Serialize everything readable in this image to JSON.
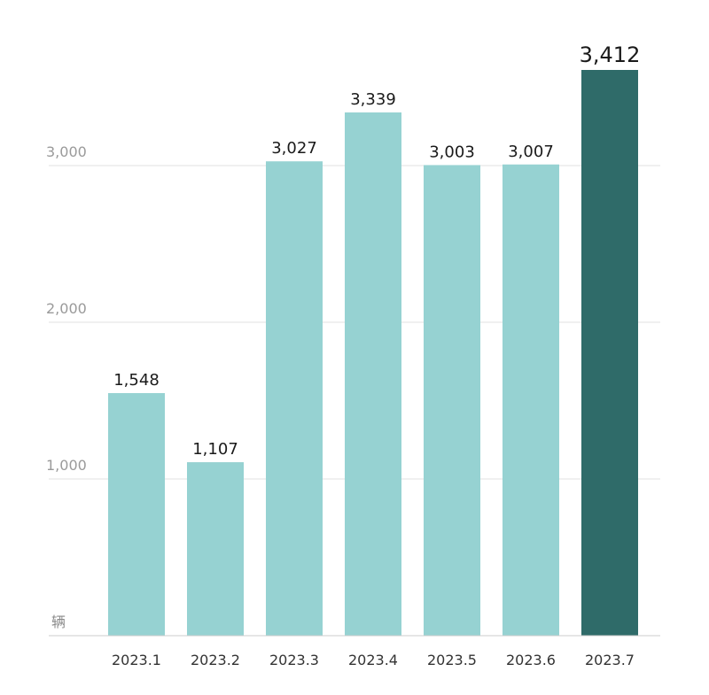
{
  "chart_data": {
    "type": "bar",
    "categories": [
      "2023.1",
      "2023.2",
      "2023.3",
      "2023.4",
      "2023.5",
      "2023.6",
      "2023.7"
    ],
    "values": [
      1548,
      1107,
      3027,
      3339,
      3003,
      3007,
      3412
    ],
    "value_labels": [
      "1,548",
      "1,107",
      "3,027",
      "3,339",
      "3,003",
      "3,007",
      "3,412"
    ],
    "ylabel": "辆",
    "yticks": [
      1000,
      2000,
      3000
    ],
    "ytick_labels": [
      "1,000",
      "2,000",
      "3,000"
    ],
    "ylim": [
      0,
      3400
    ],
    "grid": true,
    "highlight_index": 6,
    "colors": {
      "bar": "#96d2d2",
      "highlight": "#2f6b69",
      "grid": "#e0e0e0",
      "axis": "#cccccc"
    }
  }
}
